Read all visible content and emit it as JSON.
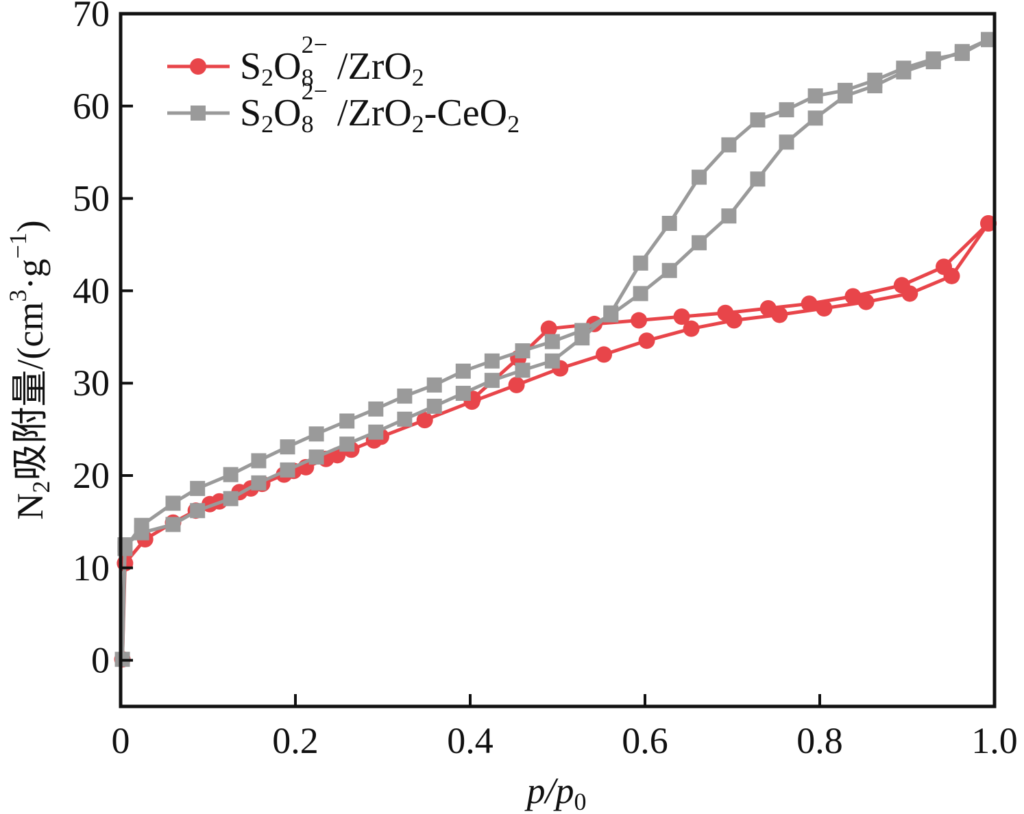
{
  "chart_data": {
    "type": "line",
    "title": "",
    "xlabel": "p/p0",
    "xlabel_parts": {
      "main": "p/p",
      "subscript": "0"
    },
    "ylabel": "N2吸附量/(cm3·g-1)",
    "ylabel_parts": {
      "n": "N",
      "n_sub": "2",
      "cn": "吸附量",
      "unit_open": "/(cm",
      "unit_sup1": "3",
      "unit_mid": "·g",
      "unit_sup2": "−1",
      "unit_close": ")"
    },
    "xlim": [
      0,
      1.0
    ],
    "ylim": [
      -5,
      70
    ],
    "xticks": [
      0,
      0.2,
      0.4,
      0.6,
      0.8,
      1.0
    ],
    "xtick_labels": [
      "0",
      "0.2",
      "0.4",
      "0.6",
      "0.8",
      "1.0"
    ],
    "yticks": [
      0,
      10,
      20,
      30,
      40,
      50,
      60,
      70
    ],
    "ytick_labels": [
      "0",
      "10",
      "20",
      "30",
      "40",
      "50",
      "60",
      "70"
    ],
    "grid": false,
    "legend_position": "top-left",
    "series": [
      {
        "name": "S2O8 2−/ZrO2",
        "legend": {
          "a": "S",
          "a_sub": "2",
          "b": "O",
          "b_sub": "8",
          "b_sup": "2−",
          "rest": " /ZrO",
          "rest_sub": "2",
          "tail": ""
        },
        "color": "#e8454a",
        "marker": "circle",
        "branches": [
          {
            "name": "adsorption",
            "x": [
              0.002,
              0.005,
              0.028,
              0.06,
              0.086,
              0.102,
              0.113,
              0.136,
              0.149,
              0.162,
              0.187,
              0.198,
              0.212,
              0.235,
              0.248,
              0.264,
              0.29,
              0.298,
              0.348,
              0.402,
              0.453,
              0.503,
              0.553,
              0.602,
              0.653,
              0.702,
              0.754,
              0.805,
              0.853,
              0.903,
              0.951,
              0.993
            ],
            "y": [
              0.1,
              10.5,
              13.1,
              14.9,
              16.2,
              16.9,
              17.2,
              18.2,
              18.6,
              19.1,
              20.1,
              20.5,
              20.9,
              21.8,
              22.2,
              22.8,
              23.8,
              24.2,
              26.0,
              28.0,
              29.8,
              31.6,
              33.1,
              34.6,
              35.9,
              36.8,
              37.4,
              38.1,
              38.8,
              39.7,
              41.6,
              47.3
            ]
          },
          {
            "name": "desorption",
            "x": [
              0.993,
              0.942,
              0.894,
              0.838,
              0.788,
              0.741,
              0.692,
              0.642,
              0.593,
              0.542,
              0.49,
              0.455,
              0.403
            ],
            "y": [
              47.3,
              42.6,
              40.6,
              39.4,
              38.6,
              38.1,
              37.6,
              37.2,
              36.8,
              36.4,
              35.9,
              32.7,
              28.3
            ]
          }
        ]
      },
      {
        "name": "S2O8 2−/ZrO2-CeO2",
        "legend": {
          "a": "S",
          "a_sub": "2",
          "b": "O",
          "b_sub": "8",
          "b_sup": "2−",
          "rest": " /ZrO",
          "rest_sub": "2",
          "tail": "-CeO",
          "tail_sub": "2"
        },
        "color": "#9a9a9a",
        "marker": "square",
        "branches": [
          {
            "name": "adsorption",
            "x": [
              0.002,
              0.005,
              0.024,
              0.06,
              0.088,
              0.126,
              0.158,
              0.191,
              0.224,
              0.259,
              0.292,
              0.325,
              0.359,
              0.392,
              0.425,
              0.46,
              0.494,
              0.528,
              0.561,
              0.595,
              0.628,
              0.662,
              0.696,
              0.729,
              0.762,
              0.795,
              0.829,
              0.863,
              0.896,
              0.93,
              0.963,
              0.993
            ],
            "y": [
              0.1,
              12.1,
              14.6,
              17.0,
              18.6,
              20.1,
              21.6,
              23.1,
              24.5,
              25.9,
              27.2,
              28.6,
              29.8,
              31.3,
              32.4,
              33.5,
              34.5,
              35.7,
              37.4,
              39.7,
              42.2,
              45.2,
              48.1,
              52.1,
              56.1,
              58.7,
              61.1,
              62.2,
              63.7,
              64.8,
              65.9,
              67.2
            ]
          },
          {
            "name": "desorption",
            "x": [
              0.993,
              0.963,
              0.93,
              0.896,
              0.863,
              0.829,
              0.795,
              0.762,
              0.729,
              0.696,
              0.662,
              0.628,
              0.595,
              0.561,
              0.528,
              0.494,
              0.46,
              0.425,
              0.392,
              0.359,
              0.325,
              0.292,
              0.259,
              0.224,
              0.191,
              0.158,
              0.126,
              0.088,
              0.06,
              0.024,
              0.005
            ],
            "y": [
              67.2,
              65.7,
              65.1,
              64.1,
              62.8,
              61.7,
              61.1,
              59.6,
              58.5,
              55.8,
              52.3,
              47.3,
              43.0,
              37.6,
              34.9,
              32.4,
              31.4,
              30.3,
              28.9,
              27.5,
              26.1,
              24.7,
              23.4,
              22.0,
              20.6,
              19.2,
              17.5,
              16.2,
              14.7,
              13.8,
              12.5
            ]
          }
        ]
      }
    ]
  }
}
